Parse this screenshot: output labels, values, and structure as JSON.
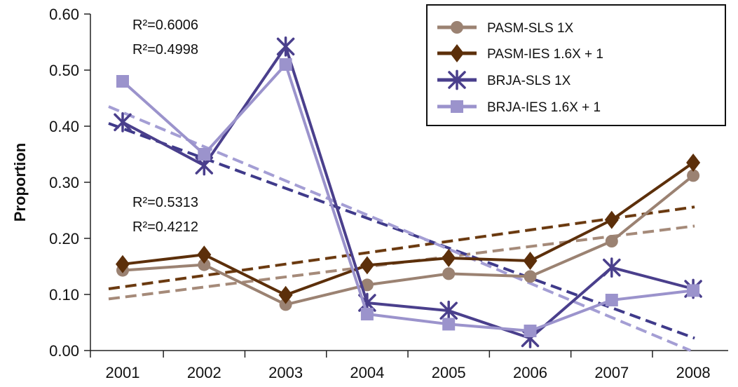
{
  "chart_data": {
    "type": "line",
    "categories": [
      "2001",
      "2002",
      "2003",
      "2004",
      "2005",
      "2006",
      "2007",
      "2008"
    ],
    "ylabel": "Proportion",
    "ylim": [
      0,
      0.6
    ],
    "yticks": [
      "0.00",
      "0.10",
      "0.20",
      "0.30",
      "0.40",
      "0.50",
      "0.60"
    ],
    "legend_position": "top-right",
    "series": [
      {
        "name": "PASM-SLS 1X",
        "marker": "circle",
        "color": "#9b8272",
        "values": [
          0.143,
          0.153,
          0.082,
          0.117,
          0.137,
          0.132,
          0.195,
          0.312
        ],
        "trend": {
          "start": 0.092,
          "end": 0.222,
          "color": "#a58a79"
        }
      },
      {
        "name": "PASM-IES 1.6X + 1",
        "marker": "diamond",
        "color": "#5c2f0a",
        "values": [
          0.154,
          0.171,
          0.099,
          0.152,
          0.165,
          0.16,
          0.233,
          0.335
        ],
        "trend": {
          "start": 0.11,
          "end": 0.256,
          "color": "#6b3a10"
        }
      },
      {
        "name": "BRJA-SLS 1X",
        "marker": "asterisk",
        "color": "#4a3f8c",
        "values": [
          0.407,
          0.33,
          0.542,
          0.085,
          0.071,
          0.022,
          0.148,
          0.11
        ],
        "trend": {
          "start": 0.405,
          "end": 0.022,
          "color": "#3f3a8a"
        }
      },
      {
        "name": "BRJA-IES 1.6X + 1",
        "marker": "square",
        "color": "#9b93cc",
        "values": [
          0.48,
          0.35,
          0.51,
          0.065,
          0.047,
          0.035,
          0.09,
          0.107
        ],
        "trend": {
          "start": 0.435,
          "end": -0.003,
          "color": "#a49ed4"
        }
      }
    ],
    "annotations": [
      "R²=0.6006",
      "R²=0.4998",
      "R²=0.5313",
      "R²=0.4212"
    ]
  }
}
